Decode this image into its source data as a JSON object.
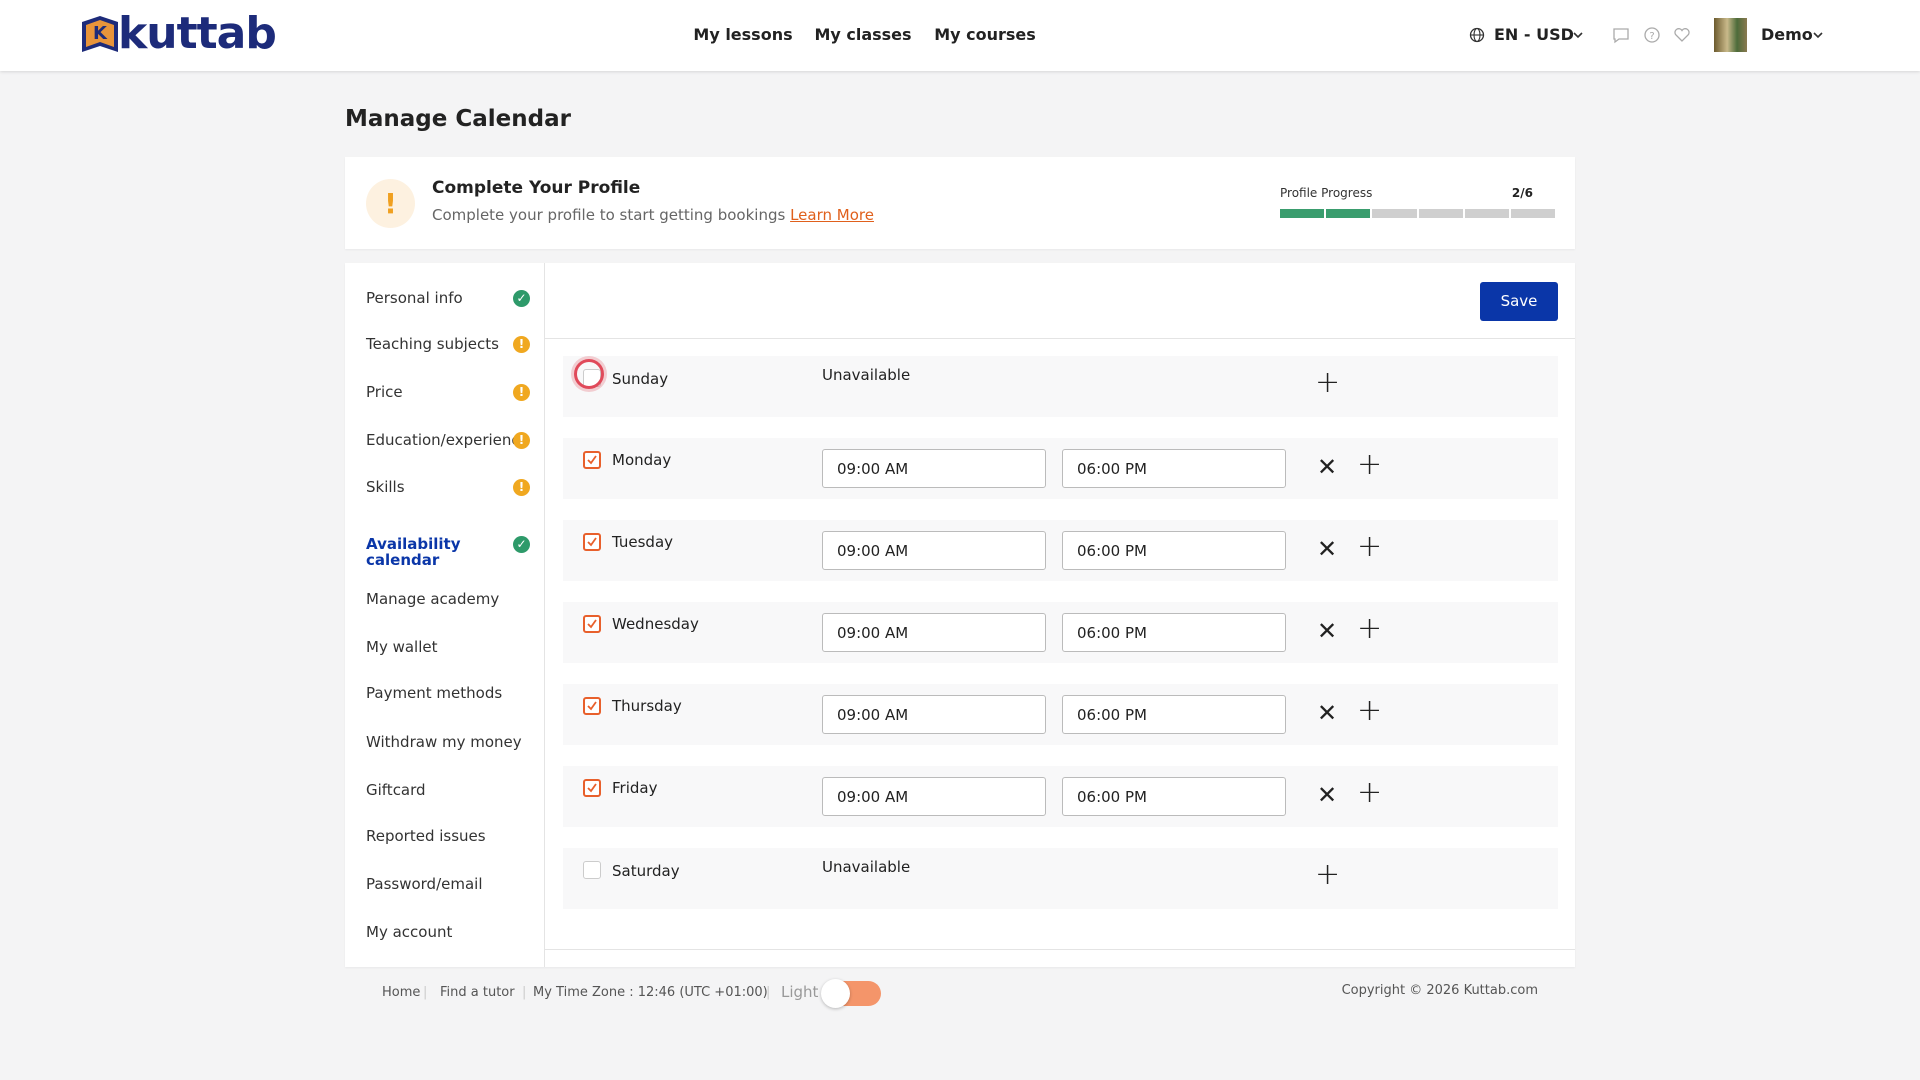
{
  "header": {
    "logo": "kuttab",
    "logo_initial": "K",
    "nav": [
      "My lessons",
      "My classes",
      "My courses"
    ],
    "language": "EN - USD",
    "user": "Demo"
  },
  "page_title": "Manage Calendar",
  "profile": {
    "title": "Complete Your Profile",
    "text": "Complete your profile to start getting bookings",
    "link": "Learn More",
    "progress_label": "Profile Progress",
    "progress": "2/6",
    "segments": [
      "complete",
      "complete",
      "incomplete",
      "incomplete",
      "incomplete",
      "incomplete"
    ]
  },
  "sidebar": {
    "active": 5,
    "items": [
      {
        "label": "Personal info",
        "status": "complete"
      },
      {
        "label": "Teaching subjects",
        "status": "warning"
      },
      {
        "label": "Price",
        "status": "warning"
      },
      {
        "label": "Education/experience",
        "status": "warning"
      },
      {
        "label": "Skills",
        "status": "warning"
      },
      {
        "label": "Availability calendar",
        "status": "complete"
      },
      {
        "label": "Manage academy",
        "status": null
      },
      {
        "label": "My wallet",
        "status": null
      },
      {
        "label": "Payment methods",
        "status": null
      },
      {
        "label": "Withdraw my money",
        "status": null
      },
      {
        "label": "Giftcard",
        "status": null
      },
      {
        "label": "Reported issues",
        "status": null
      },
      {
        "label": "Password/email",
        "status": null
      },
      {
        "label": "My account",
        "status": null
      }
    ]
  },
  "save": "Save",
  "days": [
    {
      "name": "Sunday",
      "checked": false,
      "focused": true,
      "status": "Unavailable",
      "slots": []
    },
    {
      "name": "Monday",
      "checked": true,
      "slots": [
        {
          "from": "09:00 AM",
          "to": "06:00 PM"
        }
      ]
    },
    {
      "name": "Tuesday",
      "checked": true,
      "slots": [
        {
          "from": "09:00 AM",
          "to": "06:00 PM"
        }
      ]
    },
    {
      "name": "Wednesday",
      "checked": true,
      "slots": [
        {
          "from": "09:00 AM",
          "to": "06:00 PM"
        }
      ]
    },
    {
      "name": "Thursday",
      "checked": true,
      "slots": [
        {
          "from": "09:00 AM",
          "to": "06:00 PM"
        }
      ]
    },
    {
      "name": "Friday",
      "checked": true,
      "slots": [
        {
          "from": "09:00 AM",
          "to": "06:00 PM"
        }
      ]
    },
    {
      "name": "Saturday",
      "checked": false,
      "status": "Unavailable",
      "slots": []
    }
  ],
  "footer": {
    "links": [
      "Home",
      "Find a tutor",
      "My Time Zone : 12:46 (UTC +01:00)"
    ],
    "theme": "Light",
    "copyright": "Copyright © 2026 Kuttab.com"
  }
}
